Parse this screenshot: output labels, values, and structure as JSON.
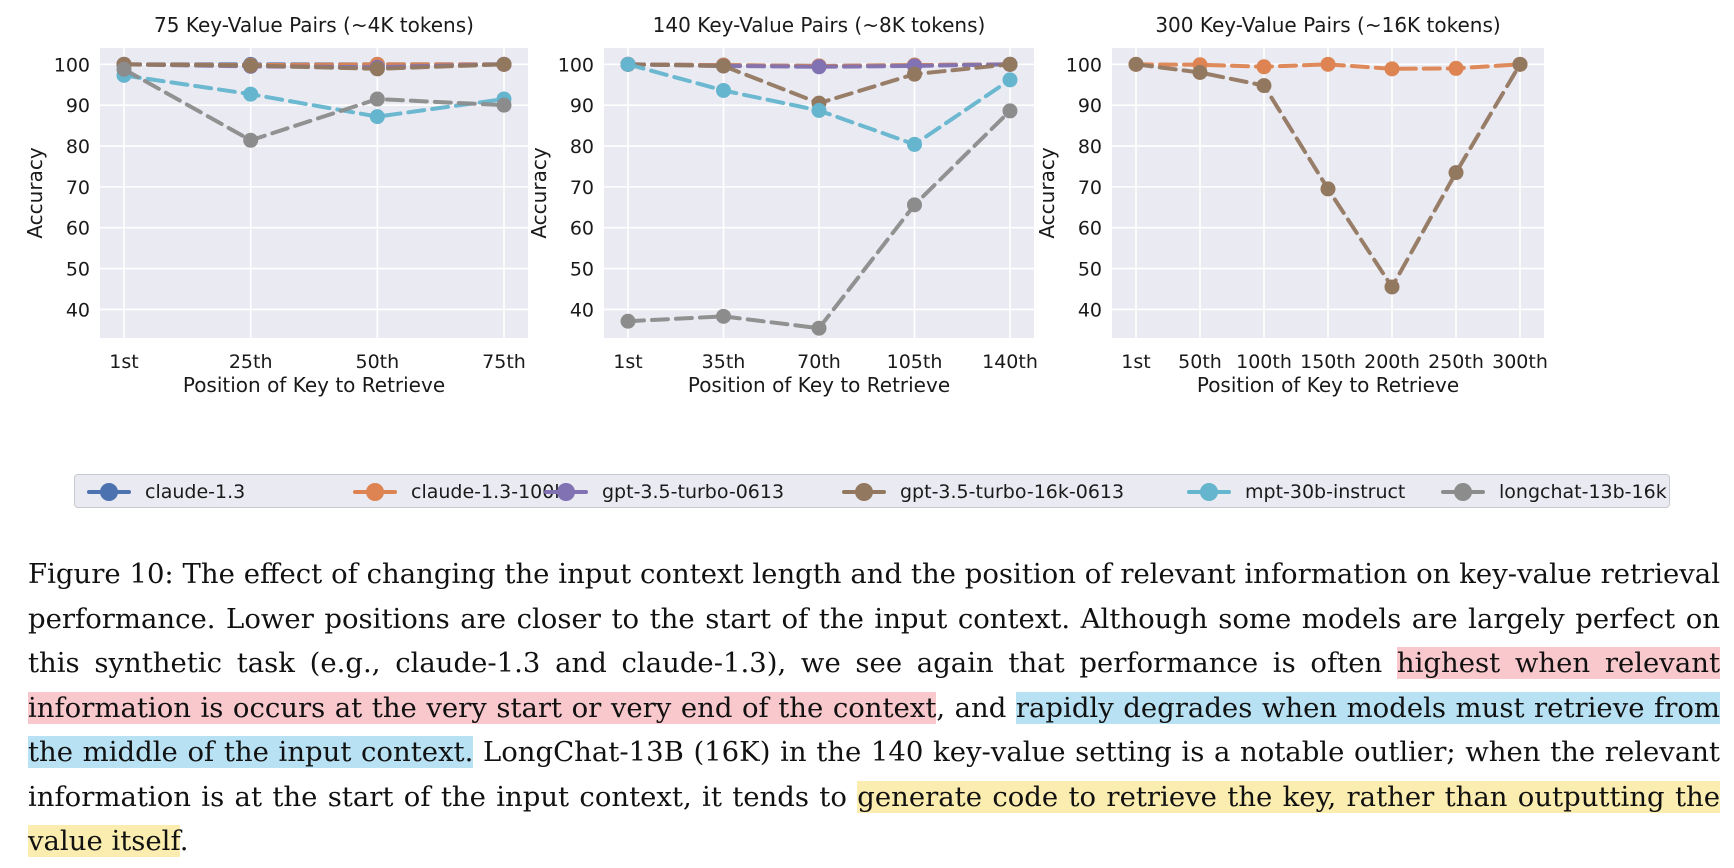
{
  "chart_data": [
    {
      "type": "line",
      "title": "75 Key-Value Pairs (~4K tokens)",
      "xlabel": "Position of Key to Retrieve",
      "ylabel": "Accuracy",
      "categories": [
        "1st",
        "25th",
        "50th",
        "75th"
      ],
      "ylim": [
        33,
        104
      ],
      "yticks": [
        "40",
        "50",
        "60",
        "70",
        "80",
        "90",
        "100"
      ],
      "series": [
        {
          "name": "claude-1.3",
          "values": [
            100,
            100,
            100,
            100
          ]
        },
        {
          "name": "claude-1.3-100k",
          "values": [
            100,
            99.8,
            100,
            100
          ]
        },
        {
          "name": "gpt-3.5-turbo-0613",
          "values": [
            100,
            99.5,
            99.3,
            100
          ]
        },
        {
          "name": "gpt-3.5-turbo-16k-0613",
          "values": [
            100,
            99.7,
            98.9,
            100
          ]
        },
        {
          "name": "mpt-30b-instruct",
          "values": [
            97.3,
            92.7,
            87.2,
            91.5
          ]
        },
        {
          "name": "longchat-13b-16k",
          "values": [
            98.8,
            81.4,
            91.5,
            90
          ]
        }
      ]
    },
    {
      "type": "line",
      "title": "140 Key-Value Pairs (~8K tokens)",
      "xlabel": "Position of Key to Retrieve",
      "ylabel": "Accuracy",
      "categories": [
        "1st",
        "35th",
        "70th",
        "105th",
        "140th"
      ],
      "ylim": [
        33,
        104
      ],
      "yticks": [
        "40",
        "50",
        "60",
        "70",
        "80",
        "90",
        "100"
      ],
      "series": [
        {
          "name": "claude-1.3",
          "values": [
            100,
            99.8,
            99.6,
            99.8,
            100
          ]
        },
        {
          "name": "claude-1.3-100k",
          "values": [
            100,
            99.8,
            99.6,
            99.8,
            100
          ]
        },
        {
          "name": "gpt-3.5-turbo-0613",
          "values": [
            100,
            99.6,
            99.4,
            99.6,
            100
          ]
        },
        {
          "name": "gpt-3.5-turbo-16k-0613",
          "values": [
            100,
            99.6,
            90.5,
            97.6,
            100
          ]
        },
        {
          "name": "mpt-30b-instruct",
          "values": [
            100,
            93.6,
            88.7,
            80.4,
            96.2
          ]
        },
        {
          "name": "longchat-13b-16k",
          "values": [
            37.1,
            38.3,
            35.4,
            65.6,
            88.6
          ]
        }
      ]
    },
    {
      "type": "line",
      "title": "300 Key-Value Pairs (~16K tokens)",
      "xlabel": "Position of Key to Retrieve",
      "ylabel": "Accuracy",
      "categories": [
        "1st",
        "50th",
        "100th",
        "150th",
        "200th",
        "250th",
        "300th"
      ],
      "ylim": [
        33,
        104
      ],
      "yticks": [
        "40",
        "50",
        "60",
        "70",
        "80",
        "90",
        "100"
      ],
      "series": [
        {
          "name": "claude-1.3-100k",
          "values": [
            100,
            99.9,
            99.4,
            100,
            98.9,
            99,
            100
          ]
        },
        {
          "name": "gpt-3.5-turbo-16k-0613",
          "values": [
            100,
            98,
            94.8,
            69.5,
            45.5,
            73.5,
            100
          ]
        }
      ]
    }
  ],
  "legend": [
    {
      "label": "claude-1.3",
      "color": "#4c72b0"
    },
    {
      "label": "claude-1.3-100k",
      "color": "#dd8452"
    },
    {
      "label": "gpt-3.5-turbo-0613",
      "color": "#8172b3"
    },
    {
      "label": "gpt-3.5-turbo-16k-0613",
      "color": "#937860"
    },
    {
      "label": "mpt-30b-instruct",
      "color": "#64b5cd"
    },
    {
      "label": "longchat-13b-16k",
      "color": "#8c8c8c"
    }
  ],
  "caption": {
    "lead": "Figure 10: The effect of changing the input context length and the position of relevant information on key-value retrieval performance. Lower positions are closer to the start of the input context. Although some models are largely perfect on this synthetic task (e.g., claude-1.3 and claude-1.3), we see again that performance is often ",
    "highlight_red": "highest when relevant information is occurs at the very start or very end of the context",
    "mid1": ", and ",
    "highlight_blue": "rapidly degrades when models must retrieve from the middle of the input context.",
    "mid2": " LongChat-13B (16K) in the 140 key-value setting is a notable outlier; when the relevant information is at the start of the input context, it tends to ",
    "highlight_yellow": "generate code to retrieve the key, rather than outputting the value itself",
    "tail": "."
  }
}
